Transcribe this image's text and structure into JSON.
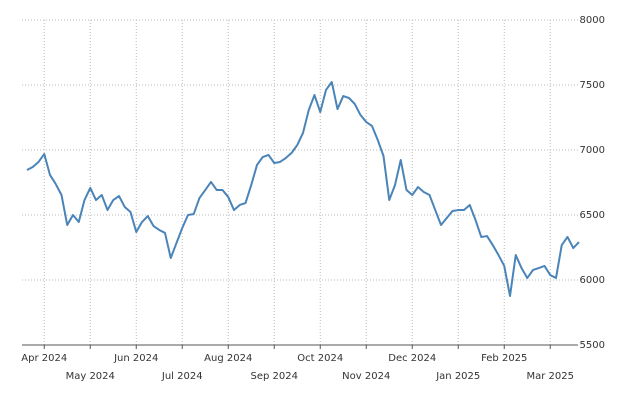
{
  "chart_data": {
    "type": "line",
    "categories": [
      null,
      null,
      null,
      "Apr 2024",
      null,
      null,
      null,
      null,
      null,
      null,
      null,
      "May 2024",
      null,
      null,
      null,
      null,
      null,
      null,
      null,
      "Jun 2024",
      null,
      null,
      null,
      null,
      null,
      null,
      null,
      "Jul 2024",
      null,
      null,
      null,
      null,
      null,
      null,
      null,
      "Aug 2024",
      null,
      null,
      null,
      null,
      null,
      null,
      null,
      "Sep 2024",
      null,
      null,
      null,
      null,
      null,
      null,
      null,
      "Oct 2024",
      null,
      null,
      null,
      null,
      null,
      null,
      null,
      "Nov 2024",
      null,
      null,
      null,
      null,
      null,
      null,
      null,
      "Dec 2024",
      null,
      null,
      null,
      null,
      null,
      null,
      null,
      "Jan 2025",
      null,
      null,
      null,
      null,
      null,
      null,
      null,
      "Feb 2025",
      null,
      null,
      null,
      null,
      null,
      null,
      null,
      "Mar 2025",
      null,
      null,
      null,
      null,
      null
    ],
    "values": [
      6846,
      6869,
      6908,
      6969,
      6808,
      6738,
      6654,
      6423,
      6500,
      6446,
      6615,
      6708,
      6615,
      6654,
      6538,
      6615,
      6646,
      6562,
      6523,
      6369,
      6446,
      6492,
      6415,
      6385,
      6362,
      6169,
      6285,
      6400,
      6500,
      6508,
      6631,
      6692,
      6754,
      6692,
      6692,
      6638,
      6538,
      6577,
      6592,
      6731,
      6885,
      6946,
      6962,
      6900,
      6908,
      6938,
      6977,
      7038,
      7131,
      7308,
      7423,
      7292,
      7462,
      7523,
      7315,
      7415,
      7400,
      7354,
      7269,
      7215,
      7185,
      7077,
      6954,
      6615,
      6731,
      6923,
      6692,
      6654,
      6715,
      6677,
      6654,
      6538,
      6423,
      6477,
      6531,
      6538,
      6538,
      6577,
      6462,
      6331,
      6338,
      6269,
      6192,
      6108,
      5877,
      6192,
      6092,
      6015,
      6077,
      6092,
      6108,
      6038,
      6015,
      6269,
      6331,
      6246,
      6292
    ],
    "color": "#4a84b8",
    "ylim": [
      5500,
      8000
    ],
    "yticks": [
      5500,
      6000,
      6500,
      7000,
      7500,
      8000
    ],
    "grid": true
  }
}
